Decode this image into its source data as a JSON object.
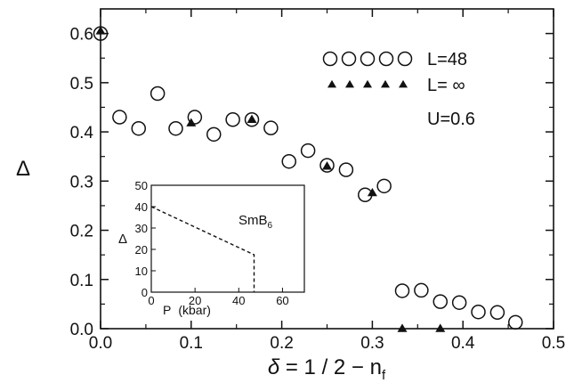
{
  "chart_data": [
    {
      "type": "scatter",
      "xlabel_parts": {
        "symbol": "δ",
        "equation": " = 1 / 2 − n",
        "subscript": "f"
      },
      "ylabel": "Δ",
      "xlim": [
        0.0,
        0.5
      ],
      "ylim": [
        0.0,
        0.65
      ],
      "x_ticks": [
        "0.0",
        "0.1",
        "0.2",
        "0.3",
        "0.4",
        "0.5"
      ],
      "x_tick_values": [
        0.0,
        0.1,
        0.2,
        0.3,
        0.4,
        0.5
      ],
      "y_ticks": [
        "0.0",
        "0.1",
        "0.2",
        "0.3",
        "0.4",
        "0.5",
        "0.6"
      ],
      "y_tick_values": [
        0.0,
        0.1,
        0.2,
        0.3,
        0.4,
        0.5,
        0.6
      ],
      "grid": false,
      "legend_position": "top-right",
      "annotation": "U=0.6",
      "series": [
        {
          "name": "L=48",
          "marker": "open-circle",
          "points": [
            [
              0.0,
              0.6
            ],
            [
              0.021,
              0.43
            ],
            [
              0.042,
              0.407
            ],
            [
              0.063,
              0.478
            ],
            [
              0.083,
              0.407
            ],
            [
              0.104,
              0.43
            ],
            [
              0.125,
              0.395
            ],
            [
              0.146,
              0.425
            ],
            [
              0.167,
              0.425
            ],
            [
              0.188,
              0.408
            ],
            [
              0.208,
              0.34
            ],
            [
              0.229,
              0.362
            ],
            [
              0.25,
              0.332
            ],
            [
              0.271,
              0.323
            ],
            [
              0.292,
              0.272
            ],
            [
              0.313,
              0.29
            ],
            [
              0.333,
              0.077
            ],
            [
              0.354,
              0.078
            ],
            [
              0.375,
              0.055
            ],
            [
              0.396,
              0.053
            ],
            [
              0.417,
              0.034
            ],
            [
              0.438,
              0.033
            ],
            [
              0.458,
              0.013
            ]
          ]
        },
        {
          "name": "L= ∞",
          "marker": "filled-triangle",
          "points": [
            [
              0.0,
              0.605
            ],
            [
              0.1,
              0.418
            ],
            [
              0.167,
              0.425
            ],
            [
              0.25,
              0.33
            ],
            [
              0.3,
              0.276
            ],
            [
              0.333,
              0.0
            ],
            [
              0.375,
              0.0
            ]
          ]
        }
      ]
    },
    {
      "type": "line",
      "label": "SmB₆",
      "label_parts": {
        "base": "SmB",
        "subscript": "6"
      },
      "xlabel_parts": {
        "symbol": "P",
        "unit": "(kbar)"
      },
      "ylabel": "Δ",
      "xlim": [
        0,
        70
      ],
      "ylim": [
        0,
        50
      ],
      "x_ticks": [
        "0",
        "20",
        "40",
        "60"
      ],
      "x_tick_values": [
        0,
        20,
        40,
        60
      ],
      "y_ticks": [
        "0",
        "10",
        "20",
        "30",
        "40",
        "50"
      ],
      "y_tick_values": [
        0,
        10,
        20,
        30,
        40,
        50
      ],
      "line_style": "dashed",
      "series": [
        {
          "points": [
            [
              0,
              40
            ],
            [
              47,
              17.5
            ],
            [
              47,
              0
            ]
          ]
        }
      ]
    }
  ]
}
